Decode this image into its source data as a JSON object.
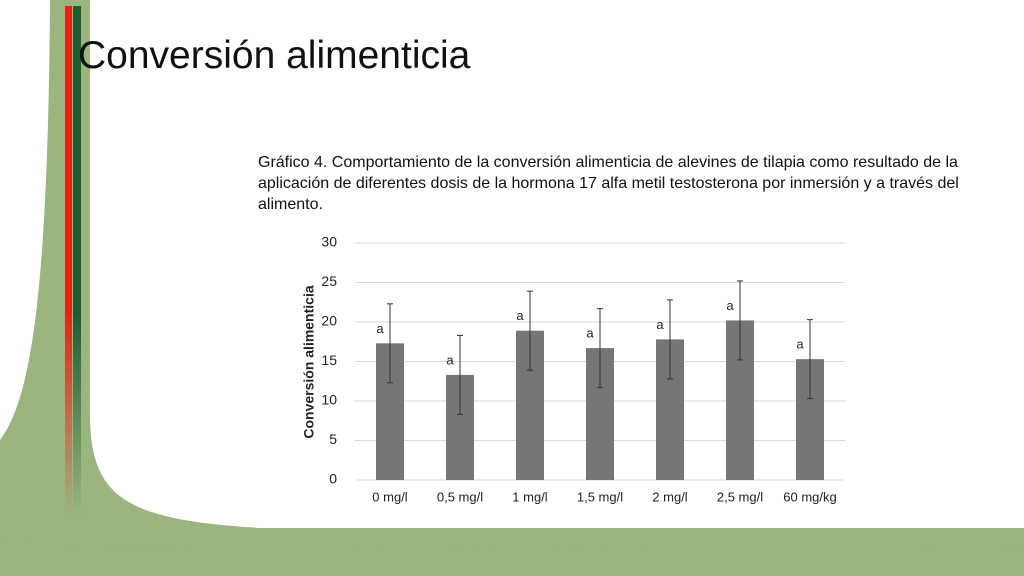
{
  "slide": {
    "title": "Conversión alimenticia"
  },
  "chart_data": {
    "type": "bar",
    "title": "Gráfico 4. Comportamiento de la conversión alimenticia de alevines de tilapia como resultado de la aplicación de diferentes dosis de la hormona 17 alfa metil testosterona por inmersión y a través del alimento.",
    "ylabel": "Conversión alimenticia",
    "categories": [
      "0 mg/l",
      "0,5 mg/l",
      "1 mg/l",
      "1,5 mg/l",
      "2 mg/l",
      "2,5 mg/l",
      "60 mg/kg"
    ],
    "values": [
      17.3,
      13.3,
      18.9,
      16.7,
      17.8,
      20.2,
      15.3
    ],
    "errors": [
      5,
      5,
      5,
      5,
      5,
      5,
      5
    ],
    "annotations": [
      "a",
      "a",
      "a",
      "a",
      "a",
      "a",
      "a"
    ],
    "color": "#767676",
    "ylim": [
      0,
      30
    ],
    "yticks": [
      0,
      5,
      10,
      15,
      20,
      25,
      30
    ],
    "grid": true
  }
}
